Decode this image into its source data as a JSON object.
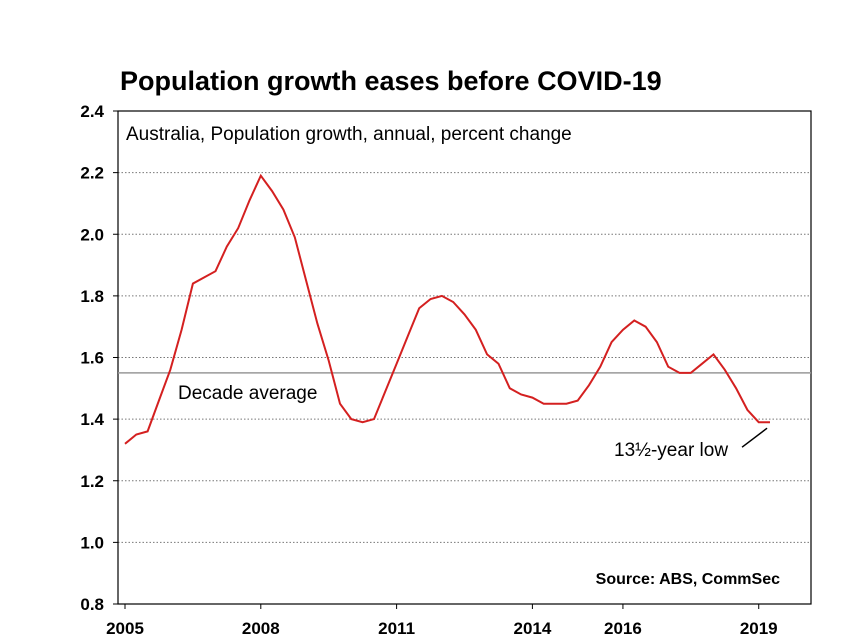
{
  "chart_data": {
    "type": "line",
    "title": "Population growth eases before COVID-19",
    "subtitle": "Australia, Population growth, annual, percent change",
    "source": "Source: ABS, CommSec",
    "xlabel": "",
    "ylabel": "",
    "ylim": [
      0.8,
      2.4
    ],
    "xlim": [
      2005,
      2020
    ],
    "y_ticks": [
      "0.8",
      "1.0",
      "1.2",
      "1.4",
      "1.6",
      "1.8",
      "2.0",
      "2.2",
      "2.4"
    ],
    "x_ticks": [
      "2005",
      "2008",
      "2011",
      "2014",
      "2016",
      "2019"
    ],
    "grid": "horizontal dotted",
    "line_color": "#d42020",
    "series": [
      {
        "x": [
          2005.0,
          2005.25,
          2005.5,
          2005.75,
          2006.0,
          2006.25,
          2006.5,
          2006.75,
          2007.0,
          2007.25,
          2007.5,
          2007.75,
          2008.0,
          2008.25,
          2008.5,
          2008.75,
          2009.0,
          2009.25,
          2009.5,
          2009.75,
          2010.0,
          2010.25,
          2010.5,
          2010.75,
          2011.0,
          2011.25,
          2011.5,
          2011.75,
          2012.0,
          2012.25,
          2012.5,
          2012.75,
          2013.0,
          2013.25,
          2013.5,
          2013.75,
          2014.0,
          2014.25,
          2014.5,
          2014.75,
          2015.0,
          2015.25,
          2015.5,
          2015.75,
          2016.0,
          2016.25,
          2016.5,
          2016.75,
          2017.0,
          2017.25,
          2017.5,
          2017.75,
          2018.0,
          2018.25,
          2018.5,
          2018.75,
          2019.0,
          2019.25
        ],
        "values": [
          1.32,
          1.35,
          1.36,
          1.46,
          1.56,
          1.69,
          1.84,
          1.86,
          1.88,
          1.96,
          2.02,
          2.11,
          2.19,
          2.14,
          2.08,
          1.99,
          1.85,
          1.71,
          1.59,
          1.45,
          1.4,
          1.39,
          1.4,
          1.49,
          1.58,
          1.67,
          1.76,
          1.79,
          1.8,
          1.78,
          1.74,
          1.69,
          1.61,
          1.58,
          1.5,
          1.48,
          1.47,
          1.45,
          1.45,
          1.45,
          1.46,
          1.51,
          1.57,
          1.65,
          1.69,
          1.72,
          1.7,
          1.65,
          1.57,
          1.55,
          1.55,
          1.58,
          1.61,
          1.56,
          1.5,
          1.43,
          1.39,
          1.39
        ]
      }
    ],
    "reference_line": {
      "label": "Decade average",
      "value": 1.55,
      "color": "#999999"
    },
    "annotations": [
      {
        "text": "13½-year low",
        "x": 2019.25,
        "y": 1.39
      }
    ]
  }
}
